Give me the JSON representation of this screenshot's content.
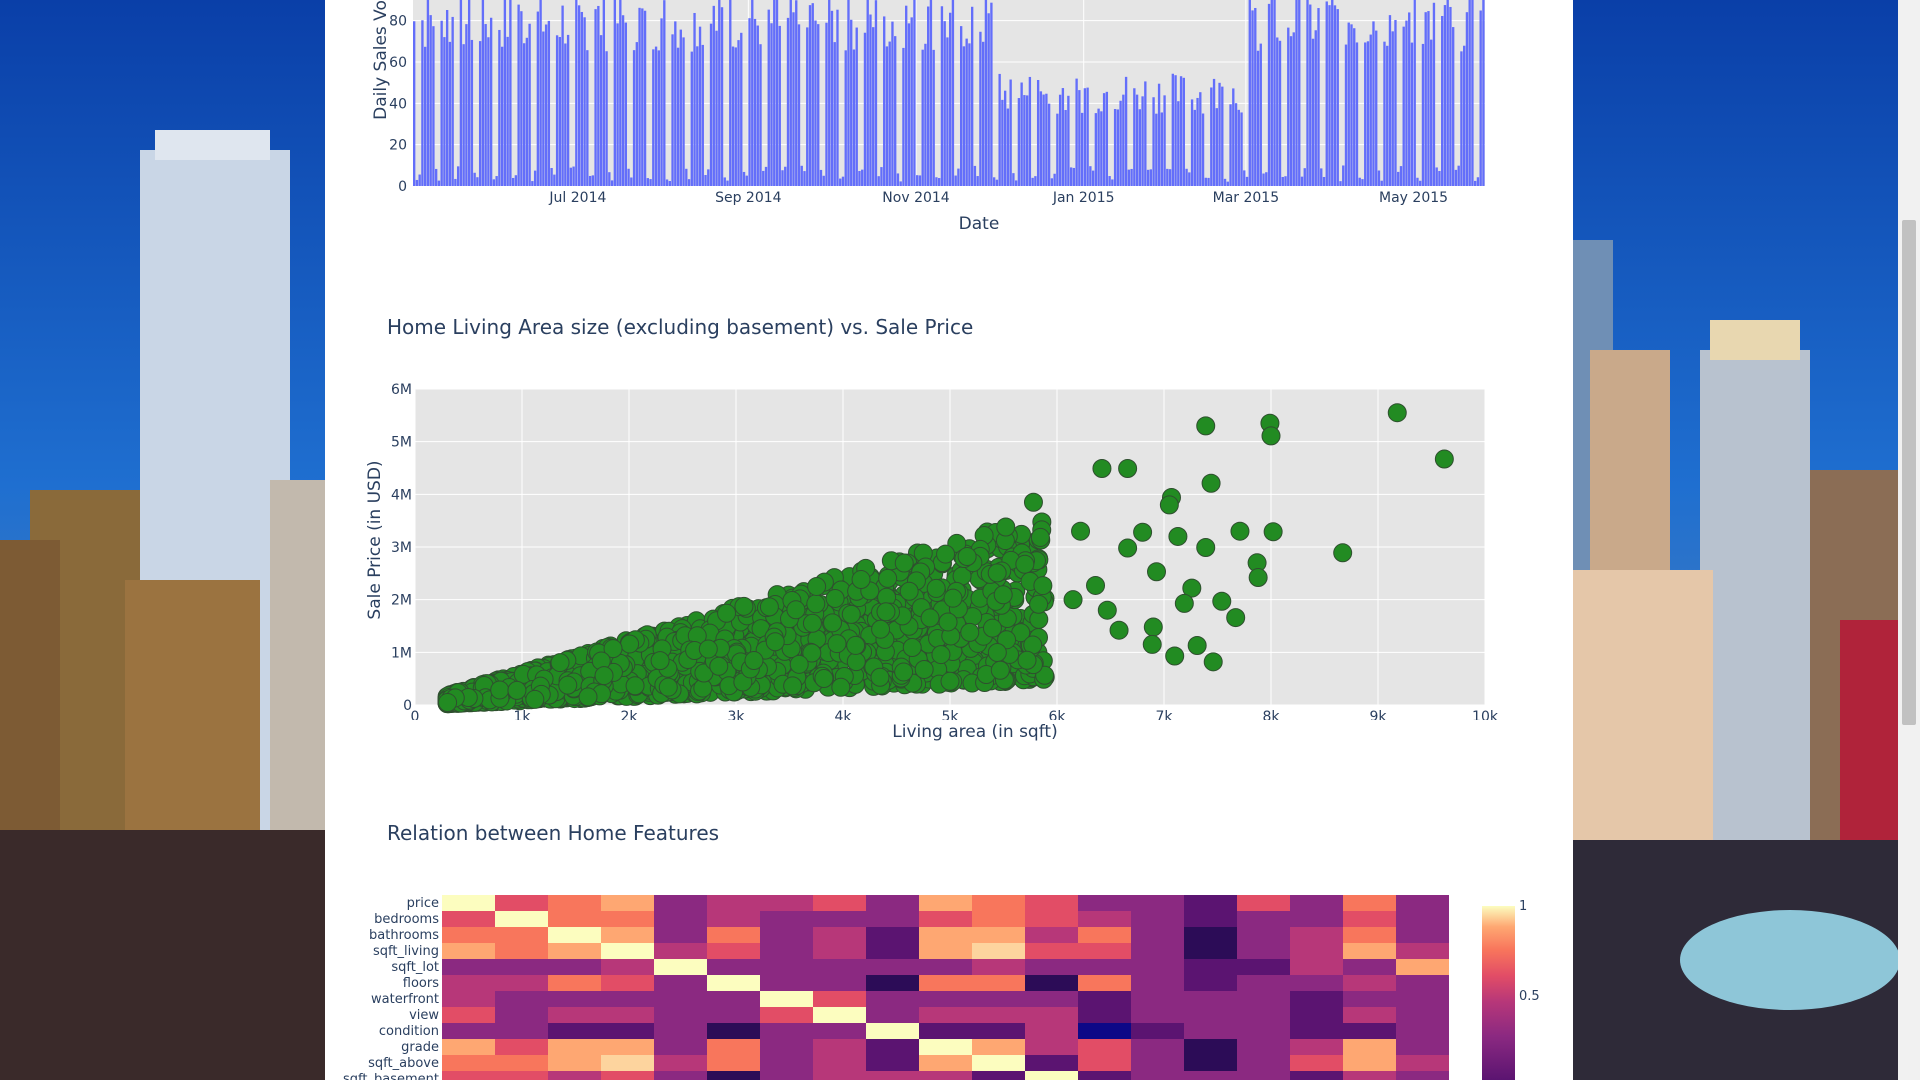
{
  "page": {
    "colors": {
      "panel_bg": "#ffffff",
      "plot_bg": "#e5e5e5",
      "bar_color": "#636efa",
      "scatter_fill": "#228B22",
      "scatter_edge": "#2F4F2F",
      "text": "#2a3f5f"
    },
    "background_description_icon": "city-skyline-at-dusk-image"
  },
  "chart_data": [
    {
      "type": "bar",
      "title": "",
      "xlabel": "Date",
      "ylabel": "Daily Sales Vo",
      "x_range": [
        "2014-05-02",
        "2015-05-27"
      ],
      "x_ticks": [
        "Jul 2014",
        "Sep 2014",
        "Nov 2014",
        "Jan 2015",
        "Mar 2015",
        "May 2015"
      ],
      "y_ticks": [
        "0",
        "20",
        "40",
        "60",
        "80"
      ],
      "ylim": [
        0,
        90
      ],
      "weekly_pattern": {
        "weekday_typical": 80,
        "weekend_typical": 5
      },
      "seasonal_notes": "weekday volumes ~80-100 in spring/summer, dip to ~30-50 around Dec 2014-Feb 2015"
    },
    {
      "type": "scatter",
      "title": "Home Living Area size (excluding basement) vs. Sale Price",
      "xlabel": "Living area (in sqft)",
      "ylabel": "Sale Price (in USD)",
      "xlim": [
        0,
        10000
      ],
      "ylim": [
        0,
        6000000
      ],
      "x_ticks": [
        "0",
        "1k",
        "2k",
        "3k",
        "4k",
        "5k",
        "6k",
        "7k",
        "8k",
        "9k",
        "10k"
      ],
      "y_ticks": [
        "0",
        "1M",
        "2M",
        "3M",
        "4M",
        "5M",
        "6M"
      ],
      "outlier_points": [
        {
          "x": 9180,
          "y": 5550000
        },
        {
          "x": 9620,
          "y": 4670000
        },
        {
          "x": 7990,
          "y": 5350000
        },
        {
          "x": 8000,
          "y": 5110000
        },
        {
          "x": 7390,
          "y": 5300000
        },
        {
          "x": 6420,
          "y": 4490000
        },
        {
          "x": 6660,
          "y": 4490000
        },
        {
          "x": 7440,
          "y": 4210000
        },
        {
          "x": 7070,
          "y": 3940000
        },
        {
          "x": 7050,
          "y": 3800000
        },
        {
          "x": 5780,
          "y": 3850000
        },
        {
          "x": 8670,
          "y": 2890000
        },
        {
          "x": 8020,
          "y": 3290000
        },
        {
          "x": 7710,
          "y": 3300000
        },
        {
          "x": 7390,
          "y": 2990000
        },
        {
          "x": 7870,
          "y": 2700000
        },
        {
          "x": 7880,
          "y": 2420000
        },
        {
          "x": 6800,
          "y": 3280000
        },
        {
          "x": 6660,
          "y": 2980000
        },
        {
          "x": 7130,
          "y": 3200000
        },
        {
          "x": 6220,
          "y": 3300000
        },
        {
          "x": 6930,
          "y": 2530000
        },
        {
          "x": 7260,
          "y": 2220000
        },
        {
          "x": 7190,
          "y": 1930000
        },
        {
          "x": 7540,
          "y": 1970000
        },
        {
          "x": 7670,
          "y": 1660000
        },
        {
          "x": 6900,
          "y": 1480000
        },
        {
          "x": 6890,
          "y": 1150000
        },
        {
          "x": 7100,
          "y": 930000
        },
        {
          "x": 7460,
          "y": 820000
        },
        {
          "x": 7310,
          "y": 1130000
        },
        {
          "x": 6360,
          "y": 2270000
        },
        {
          "x": 6470,
          "y": 1800000
        },
        {
          "x": 6580,
          "y": 1420000
        },
        {
          "x": 6150,
          "y": 2000000
        },
        {
          "x": 5720,
          "y": 850000
        },
        {
          "x": 5000,
          "y": 450000
        },
        {
          "x": 5470,
          "y": 660000
        }
      ],
      "main_cloud_description": "dense cluster from ~300 to ~6000 sqft with price rising from ~100k to ~3.5M"
    },
    {
      "type": "heatmap",
      "title": "Relation between Home Features",
      "row_labels": [
        "price",
        "bedrooms",
        "bathrooms",
        "sqft_living",
        "sqft_lot",
        "floors",
        "waterfront",
        "view",
        "condition",
        "grade",
        "sqft_above",
        "sqft_basement"
      ],
      "n_columns": 19,
      "colorscale": [
        "#0d0887",
        "#2c0c57",
        "#5b1471",
        "#8b2981",
        "#b73779",
        "#e24d66",
        "#f8765c",
        "#fea772",
        "#fdd49e",
        "#fcfdbf"
      ],
      "colorbar_ticks": [
        "1",
        "0.5"
      ],
      "values": [
        [
          1.0,
          0.31,
          0.53,
          0.7,
          0.09,
          0.26,
          0.27,
          0.4,
          0.04,
          0.67,
          0.61,
          0.32,
          0.05,
          0.13,
          -0.05,
          0.31,
          0.02,
          0.59,
          0.08
        ],
        [
          0.31,
          1.0,
          0.52,
          0.58,
          0.03,
          0.18,
          -0.01,
          0.08,
          0.03,
          0.36,
          0.48,
          0.3,
          0.15,
          0.02,
          -0.15,
          -0.01,
          0.13,
          0.39,
          0.03
        ],
        [
          0.53,
          0.52,
          1.0,
          0.75,
          0.09,
          0.5,
          0.06,
          0.19,
          -0.12,
          0.66,
          0.69,
          0.28,
          0.51,
          0.05,
          -0.2,
          0.02,
          0.22,
          0.57,
          0.09
        ],
        [
          0.7,
          0.58,
          0.75,
          1.0,
          0.17,
          0.35,
          0.1,
          0.28,
          -0.06,
          0.76,
          0.88,
          0.44,
          0.32,
          0.06,
          -0.2,
          0.05,
          0.24,
          0.76,
          0.18
        ],
        [
          0.09,
          0.03,
          0.09,
          0.17,
          1.0,
          -0.01,
          0.02,
          0.07,
          -0.01,
          0.11,
          0.18,
          0.02,
          0.05,
          0.01,
          -0.13,
          -0.09,
          0.23,
          0.14,
          0.72
        ],
        [
          0.26,
          0.18,
          0.5,
          0.35,
          -0.01,
          1.0,
          0.02,
          0.03,
          -0.26,
          0.46,
          0.52,
          -0.25,
          0.49,
          0.01,
          -0.06,
          0.05,
          0.13,
          0.28,
          -0.01
        ],
        [
          0.27,
          -0.01,
          0.06,
          0.1,
          0.02,
          0.02,
          1.0,
          0.4,
          0.02,
          0.08,
          0.07,
          0.08,
          -0.03,
          0.09,
          0.03,
          -0.01,
          -0.04,
          0.09,
          0.03
        ],
        [
          0.4,
          0.08,
          0.19,
          0.28,
          0.07,
          0.03,
          0.4,
          1.0,
          0.05,
          0.25,
          0.17,
          0.28,
          -0.05,
          0.1,
          0.08,
          0.01,
          -0.08,
          0.28,
          0.07
        ],
        [
          0.04,
          0.03,
          -0.12,
          -0.06,
          -0.01,
          -0.26,
          0.02,
          0.05,
          1.0,
          -0.14,
          -0.16,
          0.17,
          -0.36,
          -0.06,
          0.0,
          -0.01,
          -0.11,
          -0.09,
          -0.0
        ],
        [
          0.67,
          0.36,
          0.66,
          0.76,
          0.11,
          0.46,
          0.08,
          0.25,
          -0.14,
          1.0,
          0.76,
          0.17,
          0.45,
          0.01,
          -0.18,
          0.11,
          0.2,
          0.71,
          0.12
        ],
        [
          0.61,
          0.48,
          0.69,
          0.88,
          0.18,
          0.52,
          0.07,
          0.17,
          -0.16,
          0.76,
          1.0,
          -0.05,
          0.42,
          0.02,
          -0.26,
          -0.0,
          0.34,
          0.73,
          0.19
        ],
        [
          0.32,
          0.3,
          0.28,
          0.44,
          0.02,
          -0.25,
          0.08,
          0.28,
          0.17,
          0.17,
          -0.05,
          1.0,
          -0.13,
          0.07,
          0.07,
          0.11,
          -0.14,
          0.2,
          0.02
        ]
      ]
    }
  ]
}
